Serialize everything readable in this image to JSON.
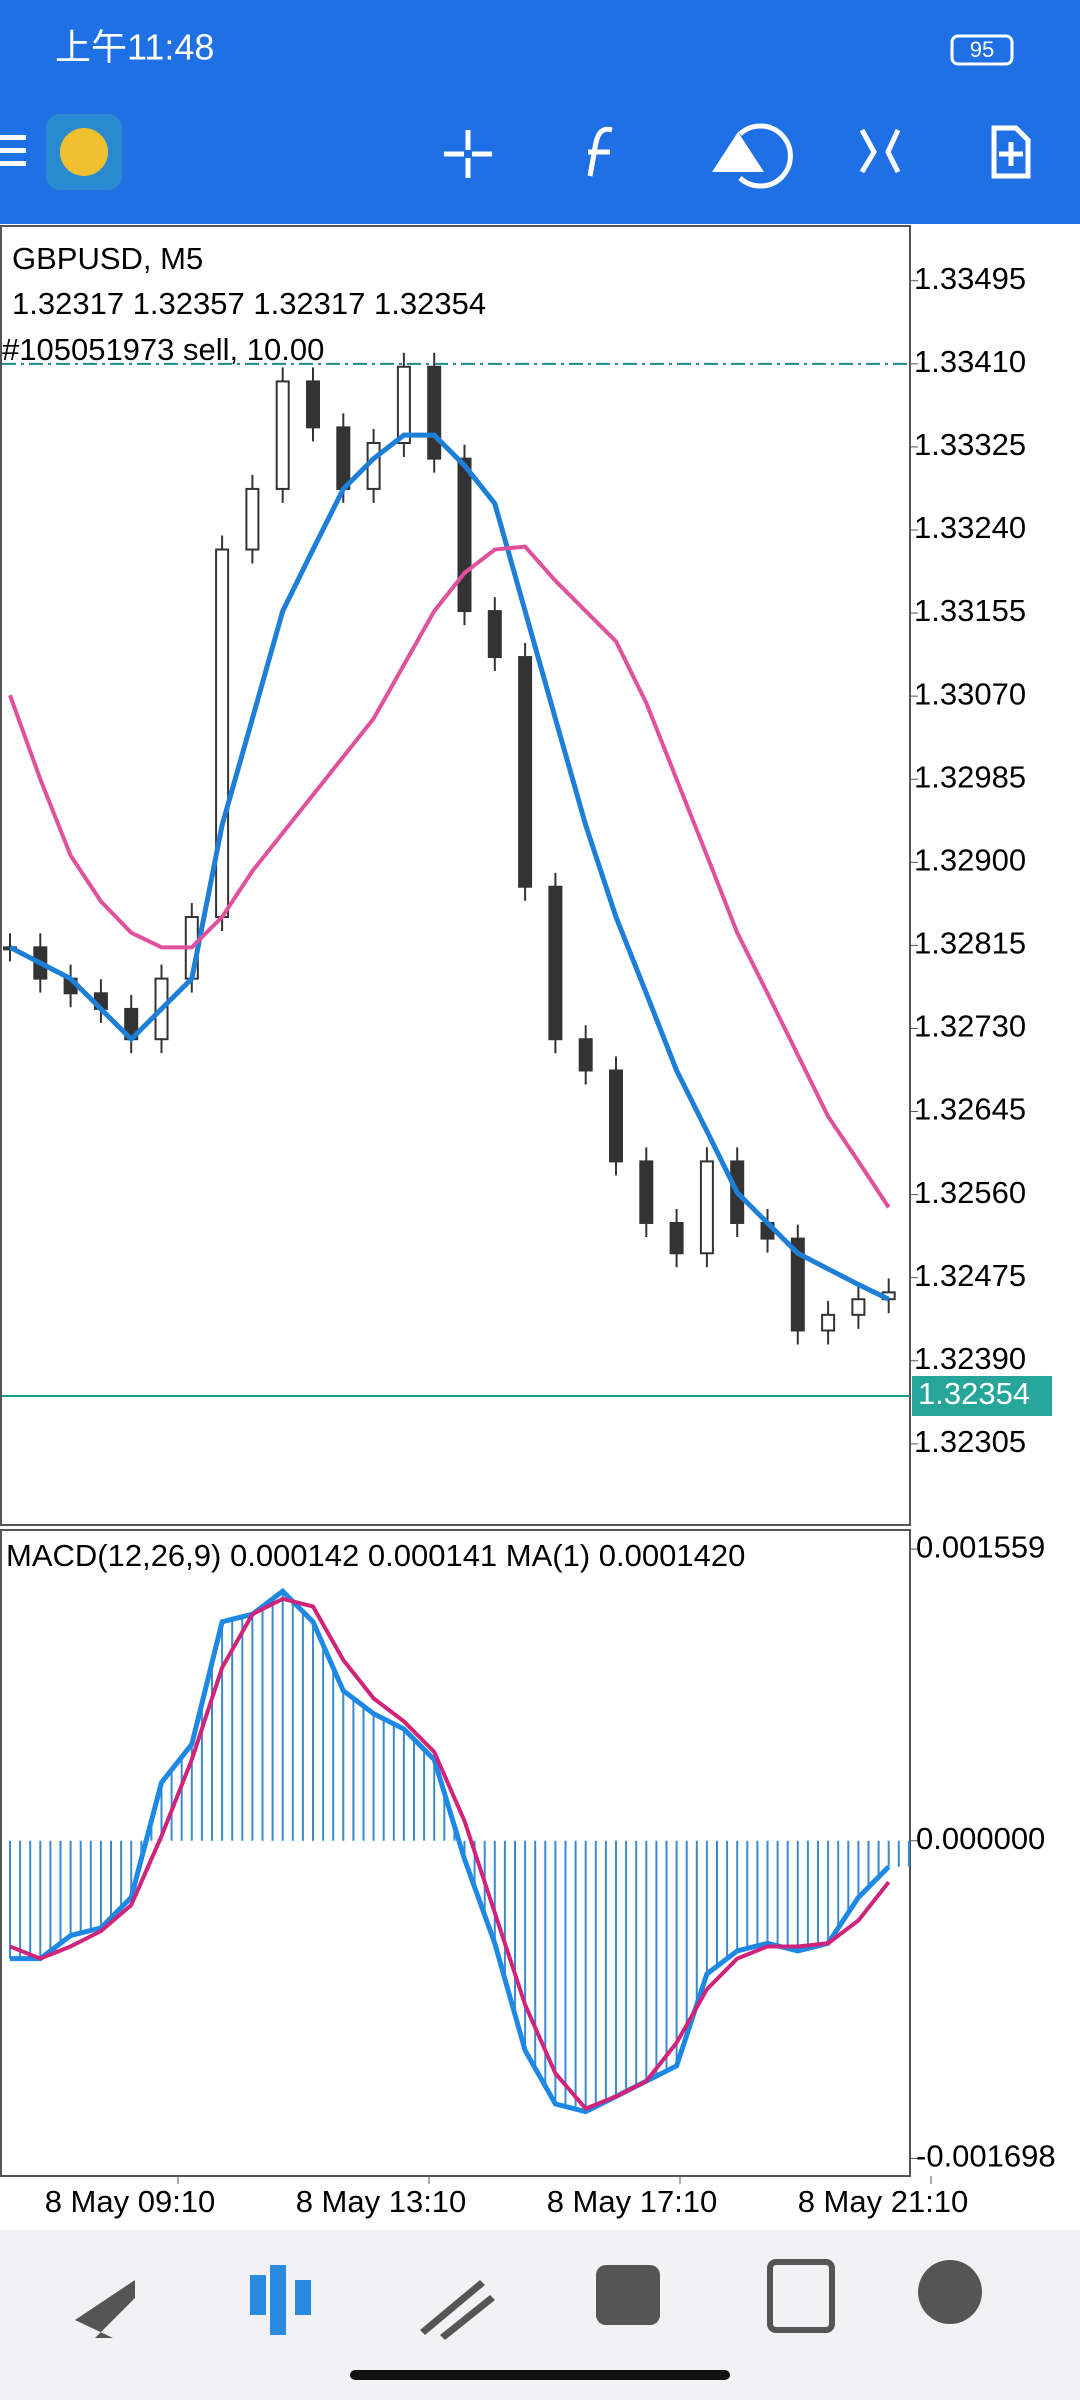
{
  "status_bar": {
    "time": "上午11:48",
    "battery": "95"
  },
  "chart_data": {
    "type": "candlestick",
    "title": "GBPUSD, M5",
    "ohlc": "1.32317 1.32357 1.32317 1.32354",
    "order": "#105051973 sell, 10.00",
    "order_price": 1.3341,
    "current_price": {
      "value": 1.32354,
      "label": "1.32354"
    },
    "close": [
      1.32813,
      1.32781,
      1.32766,
      1.3275,
      1.32719,
      1.32781,
      1.32844,
      1.3322,
      1.33282,
      1.33392,
      1.33345,
      1.33282,
      1.33329,
      1.33407,
      1.33313,
      1.33157,
      1.3311,
      1.32875,
      1.32719,
      1.32687,
      1.32594,
      1.32531,
      1.325,
      1.32594,
      1.32531,
      1.32515,
      1.32421,
      1.32437,
      1.32453,
      1.3246
    ],
    "series": [
      {
        "color": "#1e7fd8",
        "values": [
          1.32813,
          1.32797,
          1.32781,
          1.3275,
          1.32719,
          1.3275,
          1.32781,
          1.32938,
          1.33047,
          1.33157,
          1.3322,
          1.33282,
          1.33313,
          1.33337,
          1.33337,
          1.33306,
          1.33267,
          1.33157,
          1.33047,
          1.32938,
          1.32844,
          1.32766,
          1.32687,
          1.32625,
          1.32562,
          1.32531,
          1.325,
          1.32484,
          1.32468,
          1.32453
        ]
      },
      {
        "color": "#e0509c",
        "values": [
          1.33071,
          1.32985,
          1.32907,
          1.3286,
          1.32828,
          1.32813,
          1.32813,
          1.32844,
          1.32891,
          1.3293,
          1.32969,
          1.33008,
          1.33047,
          1.33102,
          1.33157,
          1.33196,
          1.3322,
          1.33223,
          1.33188,
          1.33157,
          1.33126,
          1.33063,
          1.32985,
          1.32907,
          1.32828,
          1.32766,
          1.32703,
          1.3264,
          1.32594,
          1.32547
        ]
      }
    ],
    "ylim": [
      1.32222,
      1.33551
    ],
    "yticks": [
      {
        "value": 1.33495,
        "label": "1.33495"
      },
      {
        "value": 1.3341,
        "label": "1.33410"
      },
      {
        "value": 1.33325,
        "label": "1.33325"
      },
      {
        "value": 1.3324,
        "label": "1.33240"
      },
      {
        "value": 1.33155,
        "label": "1.33155"
      },
      {
        "value": 1.3307,
        "label": "1.33070"
      },
      {
        "value": 1.32985,
        "label": "1.32985"
      },
      {
        "value": 1.329,
        "label": "1.32900"
      },
      {
        "value": 1.32815,
        "label": "1.32815"
      },
      {
        "value": 1.3273,
        "label": "1.32730"
      },
      {
        "value": 1.32645,
        "label": "1.32645"
      },
      {
        "value": 1.3256,
        "label": "1.32560"
      },
      {
        "value": 1.32475,
        "label": "1.32475"
      },
      {
        "value": 1.3239,
        "label": "1.32390"
      },
      {
        "value": 1.32305,
        "label": "1.32305"
      }
    ],
    "xlabels": [
      "8 May 09:10",
      "8 May 13:10",
      "8 May 17:10",
      "8 May 21:10"
    ]
  },
  "macd_data": {
    "type": "macd",
    "label": "MACD(12,26,9) 0.000142 0.000141 MA(1) 0.0001420",
    "macd": [
      -0.00063,
      -0.00063,
      -0.000507,
      -0.000466,
      -0.000303,
      0.000311,
      0.000516,
      0.00117,
      0.001211,
      0.001334,
      0.00117,
      0.000802,
      0.000679,
      0.000597,
      0.000434,
      -9.8e-05,
      -0.000548,
      -0.001121,
      -0.001407,
      -0.001448,
      -0.001367,
      -0.001285,
      -0.001203,
      -0.000712,
      -0.000589,
      -0.000548,
      -0.000589,
      -0.000548,
      -0.000303,
      -0.000139
    ],
    "signal": [
      -0.000565,
      -0.00063,
      -0.000565,
      -0.000483,
      -0.000344,
      2.5e-05,
      0.000434,
      0.000925,
      0.001211,
      0.001293,
      0.001252,
      0.000966,
      0.000761,
      0.000638,
      0.000475,
      0.000106,
      -0.000385,
      -0.000876,
      -0.001244,
      -0.001432,
      -0.001367,
      -0.001285,
      -0.00108,
      -0.000794,
      -0.00063,
      -0.000565,
      -0.000565,
      -0.000548,
      -0.000426,
      -0.000221
    ],
    "macd_color": "#1e88e5",
    "signal_color": "#d0247a",
    "ylim": [
      -0.001792,
      0.001661
    ],
    "yticks": [
      {
        "value": 0.001559,
        "label": "0.001559"
      },
      {
        "value": 0,
        "label": "0.000000"
      },
      {
        "value": -0.001698,
        "label": "-0.001698"
      }
    ]
  }
}
